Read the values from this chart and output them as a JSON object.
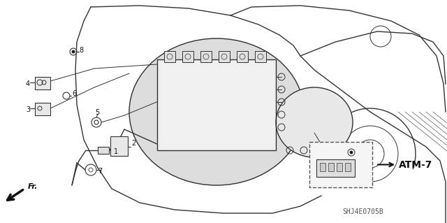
{
  "title": "",
  "background_color": "#ffffff",
  "diagram_code": "SHJ4E0705B",
  "atm_label": "ATM-7",
  "fr_label": "Fr.",
  "figsize": [
    6.4,
    3.19
  ],
  "dpi": 100
}
